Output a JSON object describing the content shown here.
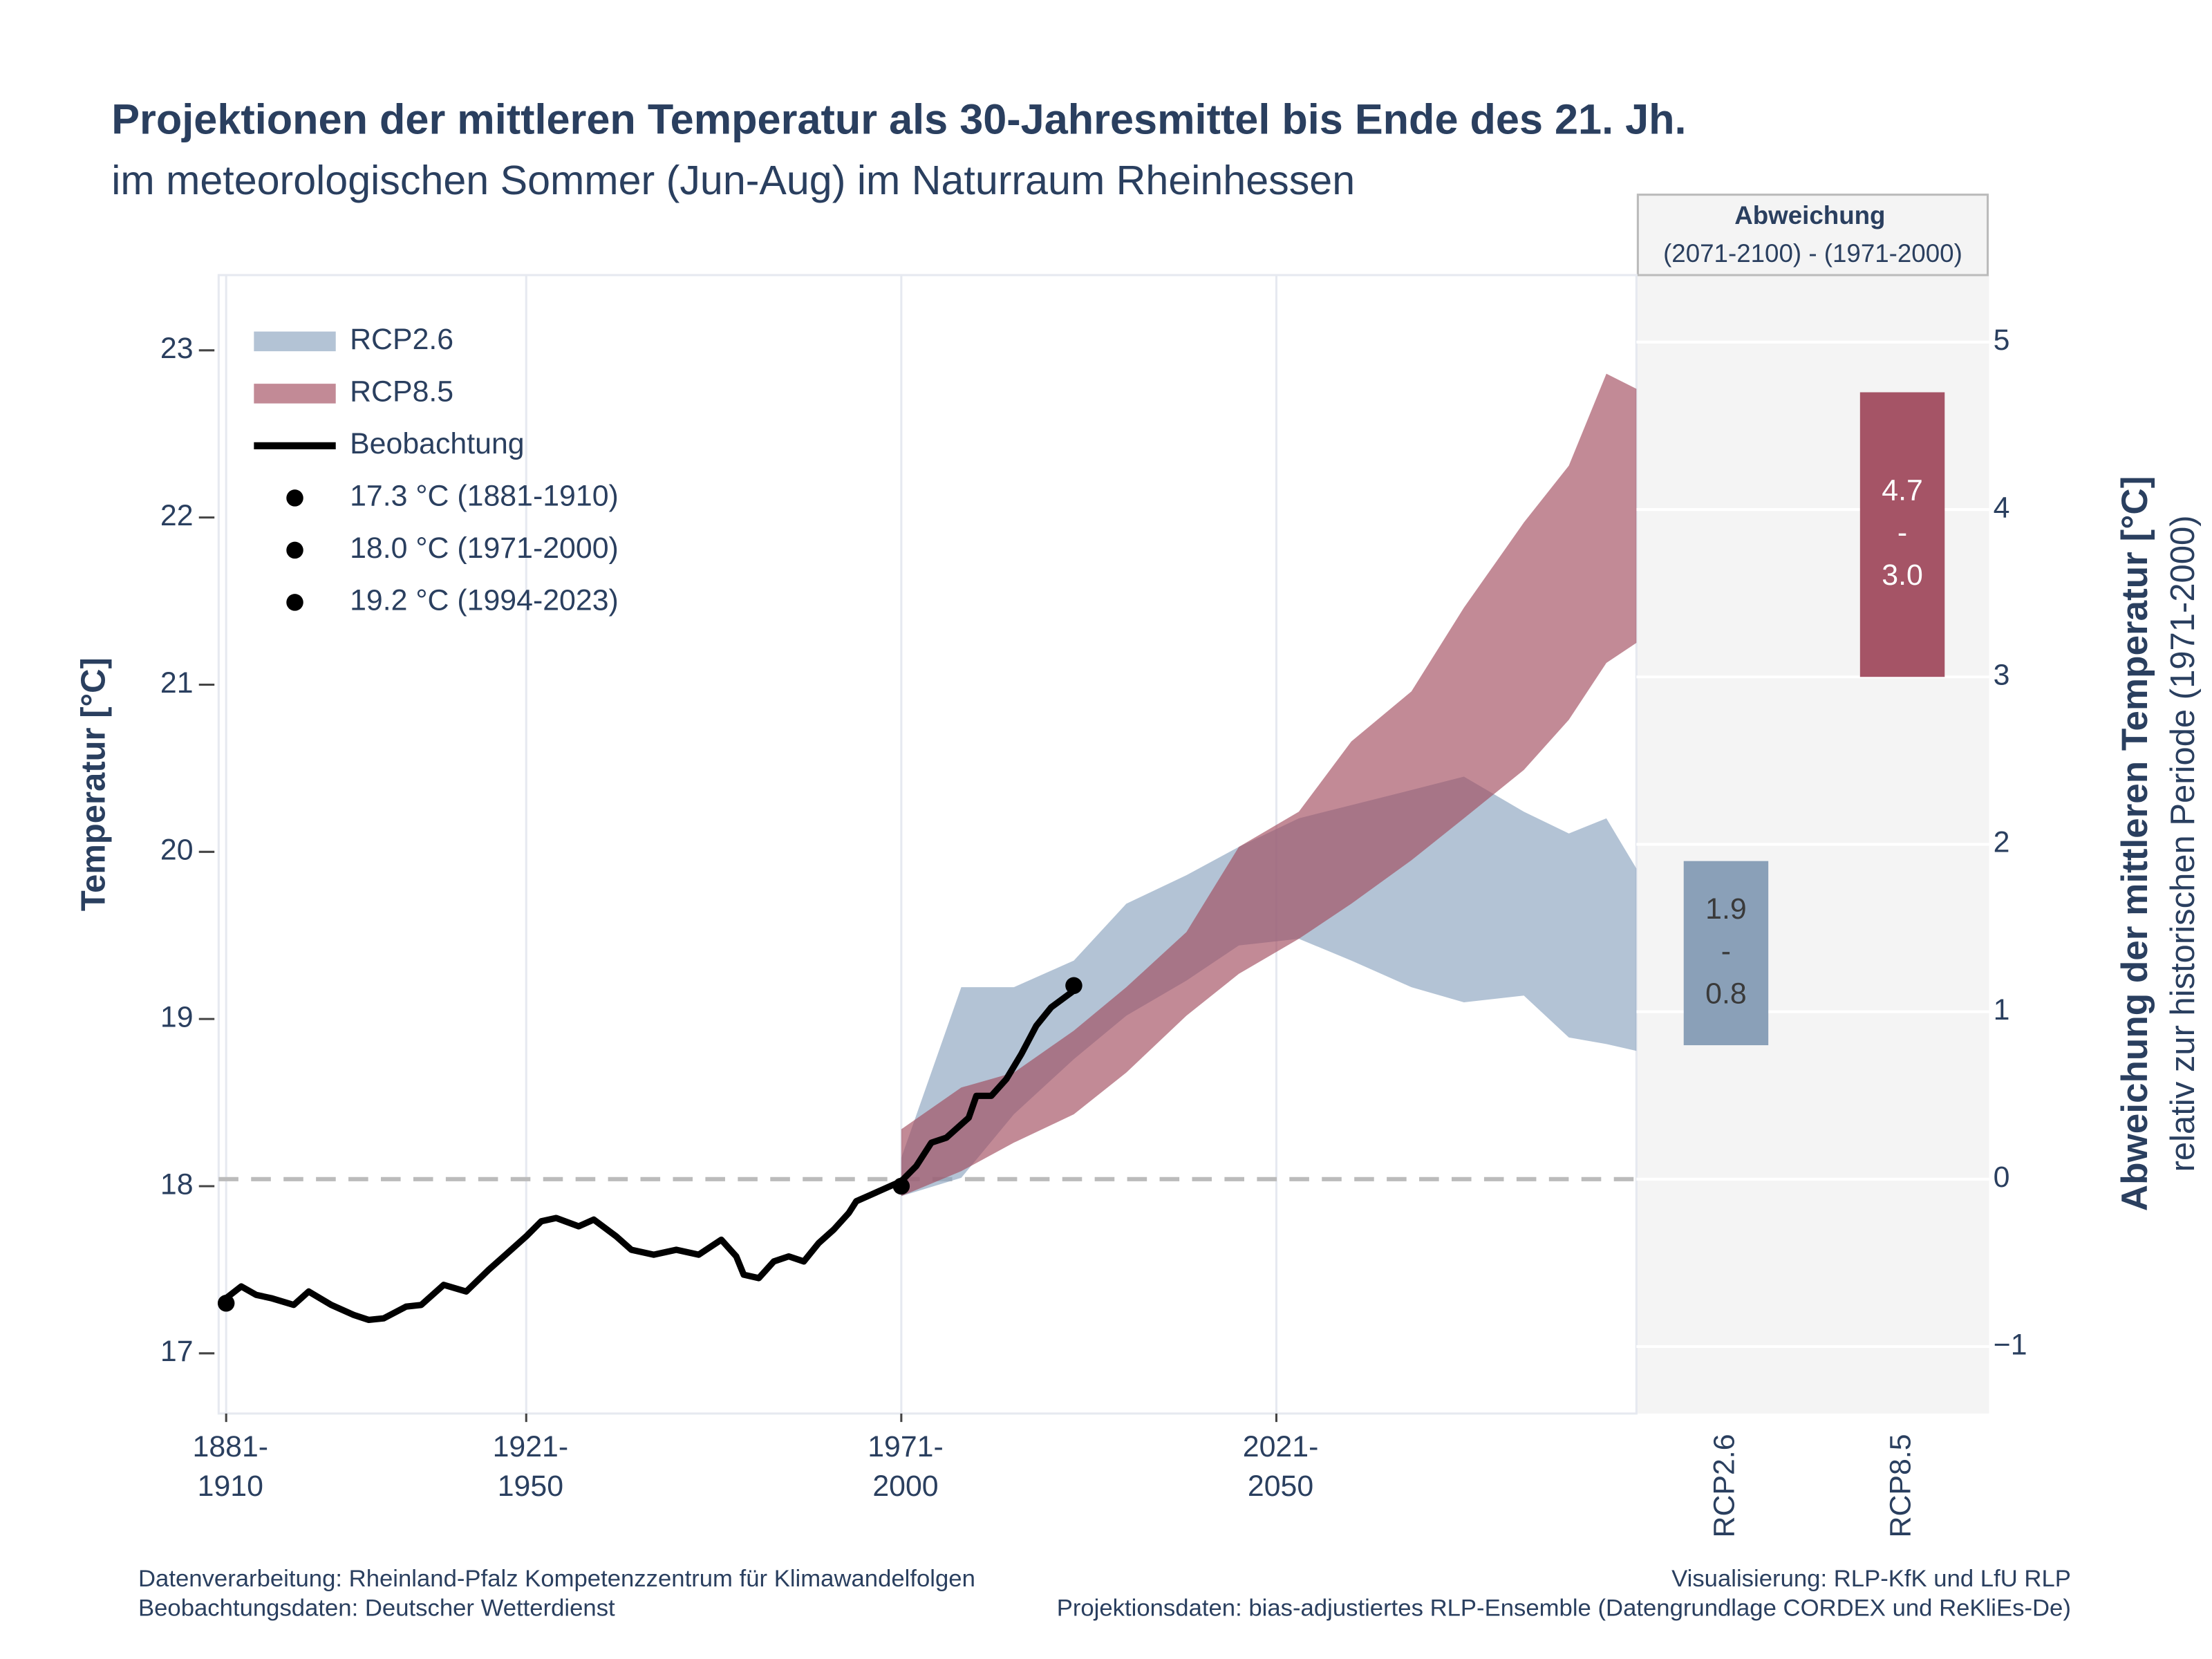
{
  "chart_data": {
    "type": "line",
    "title": "Projektionen der mittleren Temperatur als 30-Jahresmittel bis Ende des 21. Jh.",
    "subtitle": "im meteorologischen Sommer (Jun-Aug) im Naturraum Rheinhessen",
    "y_label": "Temperatur [°C]",
    "y2_label": "Abweichung der mittleren Temperatur [°C]",
    "y2_sublabel": "relativ zur historischen Periode (1971-2000)",
    "xlim": [
      1880,
      2069
    ],
    "xticks": [
      {
        "value": 1881,
        "label": "1881-1910"
      },
      {
        "value": 1921,
        "label": "1921-1950"
      },
      {
        "value": 1971,
        "label": "1971-2000"
      },
      {
        "value": 2021,
        "label": "2021-2050"
      }
    ],
    "ylim": [
      16.64,
      23.45
    ],
    "yticks": [
      17,
      18,
      19,
      20,
      21,
      22,
      23
    ],
    "y2lim": [
      -1.4,
      5.4
    ],
    "y2ticks": [
      {
        "value": -1,
        "label": "−1"
      },
      0,
      1,
      2,
      3,
      4,
      5
    ],
    "grid": true,
    "reference_line": {
      "axis": "y2",
      "value": 0,
      "color": "#bbbbbb"
    },
    "legend_position": "upper left",
    "series": [
      {
        "name": "RCP2.6",
        "type": "band",
        "color": "#8aa3bf",
        "x": [
          1971,
          1979,
          1986,
          1994,
          2001,
          2009,
          2016,
          2024,
          2031,
          2039,
          2046,
          2054,
          2060,
          2065,
          2069
        ],
        "lower": [
          17.94,
          18.05,
          18.43,
          18.76,
          19.02,
          19.23,
          19.44,
          19.48,
          19.35,
          19.19,
          19.1,
          19.14,
          18.89,
          18.85,
          18.81
        ],
        "upper": [
          18.17,
          19.19,
          19.19,
          19.35,
          19.69,
          19.86,
          20.03,
          20.2,
          20.28,
          20.37,
          20.45,
          20.24,
          20.11,
          20.2,
          19.9
        ]
      },
      {
        "name": "RCP8.5",
        "type": "band",
        "color": "#a24c5e",
        "x": [
          1971,
          1979,
          1986,
          1994,
          2001,
          2009,
          2016,
          2024,
          2031,
          2039,
          2046,
          2054,
          2060,
          2065,
          2069
        ],
        "lower": [
          17.94,
          18.09,
          18.26,
          18.43,
          18.68,
          19.02,
          19.27,
          19.48,
          19.69,
          19.95,
          20.2,
          20.49,
          20.79,
          21.13,
          21.25
        ],
        "upper": [
          18.34,
          18.59,
          18.68,
          18.93,
          19.19,
          19.52,
          20.03,
          20.24,
          20.66,
          20.96,
          21.46,
          21.97,
          22.31,
          22.86,
          22.77
        ]
      },
      {
        "name": "Beobachtung",
        "type": "line",
        "color": "#000000",
        "x": [
          1881,
          1883,
          1885,
          1887,
          1890,
          1892,
          1895,
          1898,
          1900,
          1902,
          1905,
          1907,
          1910,
          1913,
          1916,
          1918,
          1921,
          1923,
          1925,
          1928,
          1930,
          1933,
          1935,
          1938,
          1941,
          1944,
          1947,
          1949,
          1950,
          1952,
          1954,
          1956,
          1958,
          1960,
          1962,
          1964,
          1965,
          1967,
          1971,
          1973,
          1975,
          1977,
          1980,
          1981,
          1983,
          1985,
          1987,
          1989,
          1991,
          1994
        ],
        "values": [
          17.33,
          17.4,
          17.35,
          17.33,
          17.29,
          17.37,
          17.29,
          17.23,
          17.2,
          17.21,
          17.28,
          17.29,
          17.41,
          17.37,
          17.5,
          17.58,
          17.7,
          17.79,
          17.81,
          17.76,
          17.8,
          17.7,
          17.62,
          17.59,
          17.62,
          17.59,
          17.68,
          17.58,
          17.47,
          17.45,
          17.55,
          17.58,
          17.55,
          17.66,
          17.74,
          17.84,
          17.91,
          17.95,
          18.03,
          18.12,
          18.26,
          18.29,
          18.41,
          18.54,
          18.54,
          18.64,
          18.79,
          18.96,
          19.07,
          19.17
        ]
      }
    ],
    "points": [
      {
        "name": "17.3 °C (1881-1910)",
        "x": 1881,
        "value": 17.3
      },
      {
        "name": "18.0 °C (1971-2000)",
        "x": 1971,
        "value": 18.0
      },
      {
        "name": "19.2 °C (1994-2023)",
        "x": 1994,
        "value": 19.2
      }
    ],
    "panel": {
      "title": "Abweichung",
      "subtitle": "(2071-2100) - (1971-2000)",
      "categories": [
        "RCP2.6",
        "RCP8.5"
      ],
      "colors": [
        "#8aa0b8",
        "#a55466"
      ],
      "high": [
        1.9,
        4.7
      ],
      "low": [
        0.8,
        3.0
      ],
      "separator": "-",
      "value_labels": {
        "high": [
          "1.9",
          "4.7"
        ],
        "low": [
          "0.8",
          "3.0"
        ]
      }
    },
    "footer": {
      "left": [
        "Datenverarbeitung: Rheinland-Pfalz Kompetenzzentrum für Klimawandelfolgen",
        "Beobachtungsdaten:  Deutscher Wetterdienst"
      ],
      "right": [
        "Visualisierung: RLP-KfK und LfU RLP",
        "Projektionsdaten: bias-adjustiertes RLP-Ensemble (Datengrundlage CORDEX und ReKliEs-De)"
      ]
    }
  }
}
